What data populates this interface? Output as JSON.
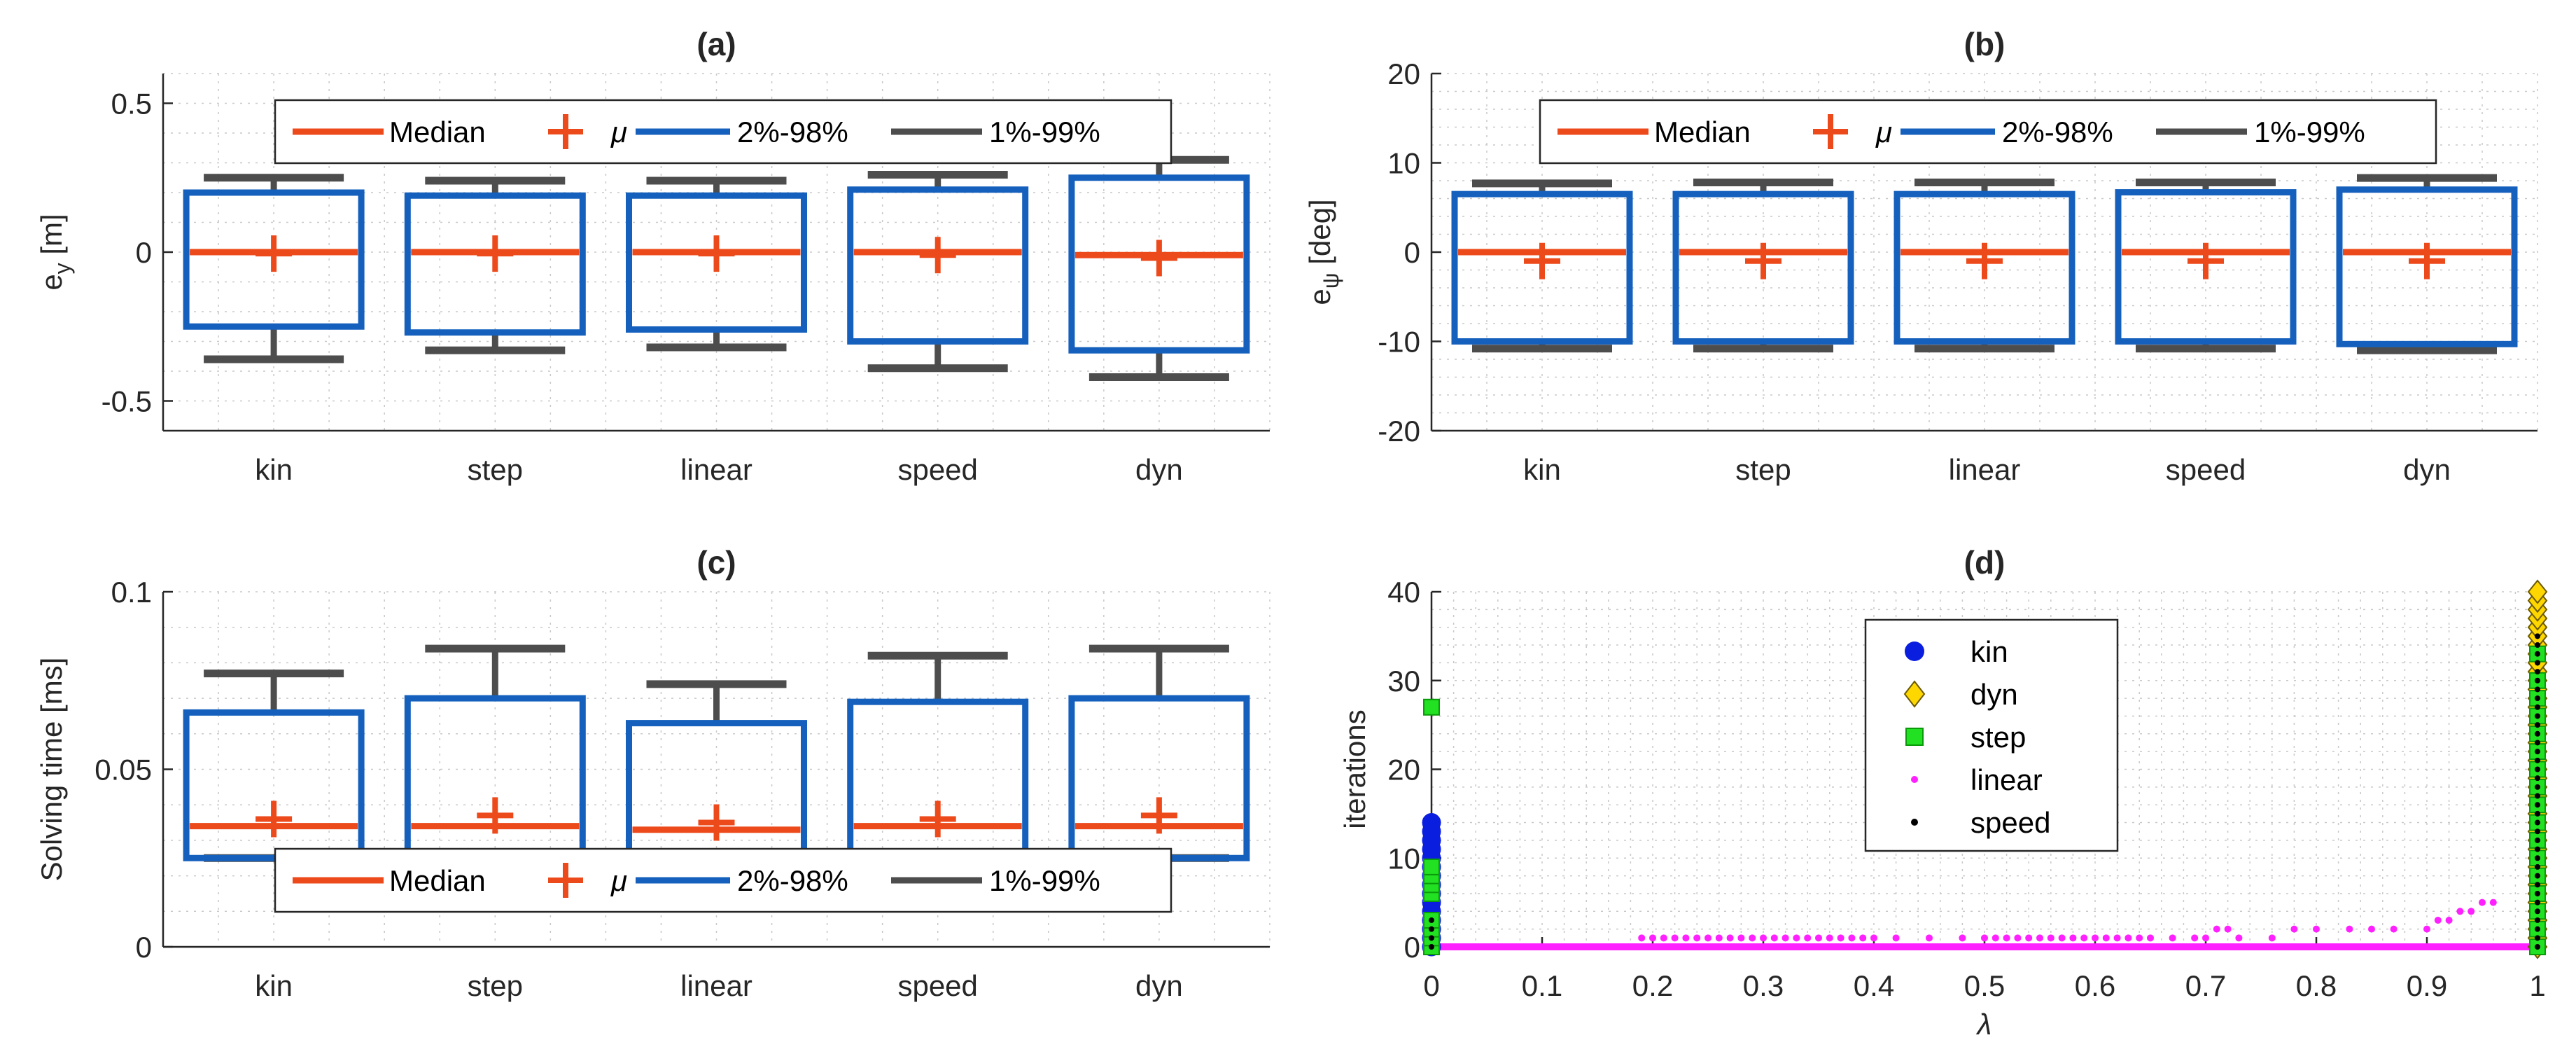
{
  "colors": {
    "median": "#ED4A1C",
    "mean": "#ED4A1C",
    "box": "#1560BD",
    "whisker": "#4D4D4D",
    "kin": "#0A1EE0",
    "dyn": "#FFD700",
    "step": "#22E022",
    "linear": "#FF20FF",
    "speed": "#000000"
  },
  "legend_box": {
    "median": "Median",
    "mu": "μ",
    "p2_98": "2%-98%",
    "p1_99": "1%-99%"
  },
  "chart_data": [
    {
      "id": "a",
      "type": "box",
      "title": "(a)",
      "ylabel": "e",
      "ylabel_sub": "y",
      "ylabel_unit": " [m]",
      "ylim": [
        -0.6,
        0.6
      ],
      "yticks": [
        -0.5,
        0,
        0.5
      ],
      "ytick_labels": [
        "-0.5",
        "0",
        "0.5"
      ],
      "minor_step": 0.1,
      "legend_position": "top",
      "categories": [
        "kin",
        "step",
        "linear",
        "speed",
        "dyn"
      ],
      "median": [
        0,
        0,
        0,
        0,
        -0.01
      ],
      "mean": [
        -0.005,
        -0.005,
        -0.005,
        -0.01,
        -0.02
      ],
      "p2": [
        -0.25,
        -0.27,
        -0.26,
        -0.3,
        -0.33
      ],
      "p98": [
        0.2,
        0.19,
        0.19,
        0.21,
        0.25
      ],
      "p1": [
        -0.36,
        -0.33,
        -0.32,
        -0.39,
        -0.42
      ],
      "p99": [
        0.25,
        0.24,
        0.24,
        0.26,
        0.31
      ]
    },
    {
      "id": "b",
      "type": "box",
      "title": "(b)",
      "ylabel": "e",
      "ylabel_sub": "ψ",
      "ylabel_unit": " [deg]",
      "ylim": [
        -20,
        20
      ],
      "yticks": [
        -20,
        -10,
        0,
        10,
        20
      ],
      "ytick_labels": [
        "-20",
        "-10",
        "0",
        "10",
        "20"
      ],
      "minor_step": 2,
      "legend_position": "top",
      "categories": [
        "kin",
        "step",
        "linear",
        "speed",
        "dyn"
      ],
      "median": [
        0,
        0,
        0,
        0,
        0
      ],
      "mean": [
        -1.0,
        -1.0,
        -1.0,
        -1.0,
        -1.0
      ],
      "p2": [
        -10.0,
        -10.0,
        -10.0,
        -10.0,
        -10.3
      ],
      "p98": [
        6.5,
        6.5,
        6.5,
        6.7,
        7.0
      ],
      "p1": [
        -10.8,
        -10.8,
        -10.8,
        -10.8,
        -11.0
      ],
      "p99": [
        7.7,
        7.8,
        7.8,
        7.8,
        8.3
      ]
    },
    {
      "id": "c",
      "type": "box",
      "title": "(c)",
      "ylabel": "Solving time [ms]",
      "ylabel_sub": "",
      "ylabel_unit": "",
      "ylim": [
        0,
        0.1
      ],
      "yticks": [
        0,
        0.05,
        0.1
      ],
      "ytick_labels": [
        "0",
        "0.05",
        "0.1"
      ],
      "minor_step": 0.01,
      "legend_position": "bottom",
      "categories": [
        "kin",
        "step",
        "linear",
        "speed",
        "dyn"
      ],
      "median": [
        0.034,
        0.034,
        0.033,
        0.034,
        0.034
      ],
      "mean": [
        0.036,
        0.037,
        0.035,
        0.036,
        0.037
      ],
      "p2": [
        0.025,
        0.025,
        0.025,
        0.025,
        0.025
      ],
      "p98": [
        0.066,
        0.07,
        0.063,
        0.069,
        0.07
      ],
      "p1": [
        0.025,
        0.025,
        0.025,
        0.025,
        0.025
      ],
      "p99": [
        0.077,
        0.084,
        0.074,
        0.082,
        0.084
      ]
    },
    {
      "id": "d",
      "type": "scatter",
      "title": "(d)",
      "xlabel": "λ",
      "ylabel": "iterations",
      "xlim": [
        0,
        1
      ],
      "ylim": [
        0,
        40
      ],
      "xticks": [
        0,
        0.1,
        0.2,
        0.3,
        0.4,
        0.5,
        0.6,
        0.7,
        0.8,
        0.9,
        1
      ],
      "xtick_labels": [
        "0",
        "0.1",
        "0.2",
        "0.3",
        "0.4",
        "0.5",
        "0.6",
        "0.7",
        "0.8",
        "0.9",
        "1"
      ],
      "yticks": [
        0,
        10,
        20,
        30,
        40
      ],
      "ytick_labels": [
        "0",
        "10",
        "20",
        "30",
        "40"
      ],
      "legend": [
        "kin",
        "dyn",
        "step",
        "linear",
        "speed"
      ],
      "series": [
        {
          "name": "kin",
          "marker": "circle",
          "x": [
            0,
            0,
            0,
            0,
            0,
            0,
            0,
            0,
            0,
            0,
            0,
            0,
            0,
            0,
            0
          ],
          "y": [
            0,
            1,
            2,
            3,
            4,
            5,
            6,
            7,
            8,
            9,
            10,
            11,
            12,
            13,
            14
          ]
        },
        {
          "name": "dyn",
          "marker": "diamond",
          "x": [
            1,
            1,
            1,
            1,
            1,
            1,
            1,
            1,
            1,
            1,
            1,
            1,
            1,
            1,
            1,
            1,
            1,
            1,
            1,
            1,
            1,
            1,
            1,
            1,
            1,
            1,
            1,
            1,
            1,
            1,
            1,
            1,
            1,
            1,
            1,
            1,
            1,
            1,
            1,
            1,
            1
          ],
          "y": [
            0,
            1,
            2,
            3,
            4,
            5,
            6,
            7,
            8,
            9,
            10,
            11,
            12,
            13,
            14,
            15,
            16,
            17,
            18,
            19,
            20,
            21,
            22,
            23,
            24,
            25,
            26,
            27,
            28,
            29,
            30,
            31,
            32,
            33,
            34,
            35,
            36,
            37,
            38,
            39,
            40
          ]
        },
        {
          "name": "step",
          "marker": "square",
          "x": [
            0,
            0,
            0,
            0,
            0,
            0,
            0,
            0,
            0,
            1,
            1,
            1,
            1,
            1,
            1,
            1,
            1,
            1,
            1,
            1,
            1,
            1,
            1,
            1,
            1,
            1
          ],
          "y": [
            0,
            1,
            2,
            3,
            6,
            7,
            8,
            9,
            27,
            0,
            2,
            4,
            6,
            8,
            10,
            12,
            14,
            16,
            18,
            20,
            22,
            24,
            26,
            28,
            30,
            33
          ]
        },
        {
          "name": "linear",
          "marker": "dot",
          "x": [
            0.19,
            0.2,
            0.21,
            0.22,
            0.23,
            0.24,
            0.25,
            0.26,
            0.27,
            0.28,
            0.29,
            0.3,
            0.31,
            0.32,
            0.33,
            0.34,
            0.35,
            0.36,
            0.37,
            0.38,
            0.39,
            0.4,
            0.42,
            0.45,
            0.48,
            0.5,
            0.51,
            0.52,
            0.53,
            0.54,
            0.55,
            0.56,
            0.57,
            0.58,
            0.59,
            0.6,
            0.61,
            0.62,
            0.63,
            0.64,
            0.65,
            0.67,
            0.69,
            0.7,
            0.71,
            0.72,
            0.73,
            0.76,
            0.78,
            0.8,
            0.83,
            0.85,
            0.87,
            0.9,
            0.91,
            0.92,
            0.93,
            0.94,
            0.95,
            0.96
          ],
          "y": [
            1,
            1,
            1,
            1,
            1,
            1,
            1,
            1,
            1,
            1,
            1,
            1,
            1,
            1,
            1,
            1,
            1,
            1,
            1,
            1,
            1,
            1,
            1,
            1,
            1,
            1,
            1,
            1,
            1,
            1,
            1,
            1,
            1,
            1,
            1,
            1,
            1,
            1,
            1,
            1,
            1,
            1,
            1,
            1,
            2,
            2,
            1,
            1,
            2,
            2,
            2,
            2,
            2,
            2,
            3,
            3,
            4,
            4,
            5,
            5
          ]
        },
        {
          "name": "speed",
          "marker": "smalldot",
          "x": [
            0,
            0,
            0,
            0,
            1,
            1,
            1,
            1,
            1,
            1,
            1,
            1,
            1,
            1,
            1,
            1,
            1,
            1,
            1,
            1,
            1,
            1,
            1,
            1,
            1,
            1,
            1,
            1,
            1,
            1,
            1,
            1,
            1,
            1,
            1,
            1,
            1,
            1,
            1,
            1
          ],
          "y": [
            0,
            1,
            2,
            3,
            0,
            1,
            2,
            3,
            4,
            5,
            6,
            7,
            8,
            9,
            10,
            11,
            12,
            13,
            14,
            15,
            16,
            17,
            18,
            19,
            20,
            21,
            22,
            23,
            24,
            25,
            26,
            27,
            28,
            29,
            30,
            31,
            32,
            33,
            34,
            35
          ]
        }
      ]
    }
  ]
}
